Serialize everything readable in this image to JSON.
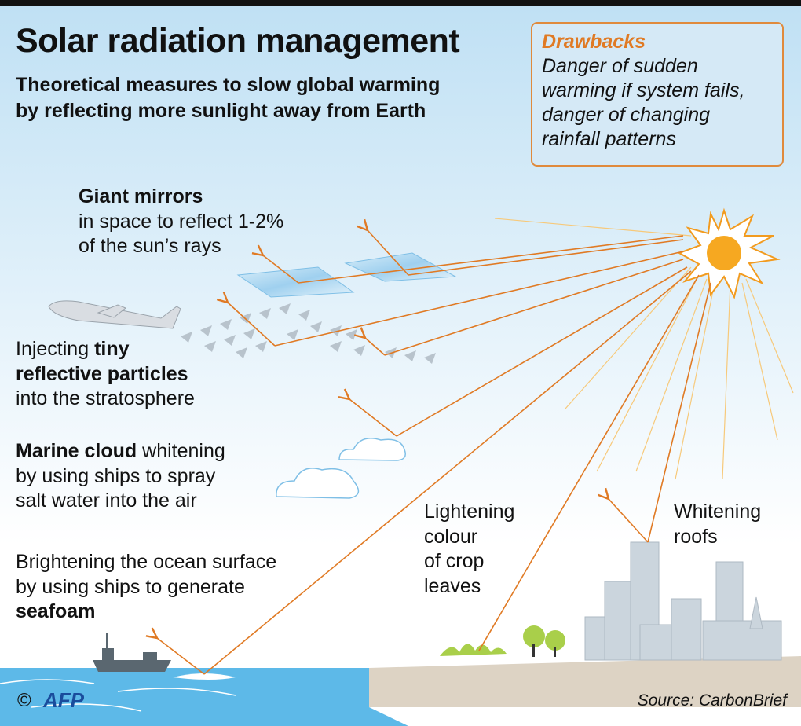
{
  "header": {
    "title": "Solar radiation management",
    "subtitle": [
      "Theoretical measures to slow global warming",
      "by reflecting more sunlight away from Earth"
    ]
  },
  "drawbacks": {
    "title": "Drawbacks",
    "lines": [
      "Danger of sudden",
      "warming if system fails,",
      "danger of changing",
      "rainfall patterns"
    ]
  },
  "labels": {
    "mirrors": [
      [
        {
          "text": "Giant mirrors",
          "bold": true
        }
      ],
      [
        {
          "text": "in space to reflect 1-2%"
        }
      ],
      [
        {
          "text": "of the sun’s rays"
        }
      ]
    ],
    "particles": [
      [
        {
          "text": "Injecting "
        },
        {
          "text": "tiny",
          "bold": true
        }
      ],
      [
        {
          "text": "reflective particles",
          "bold": true
        }
      ],
      [
        {
          "text": "into the stratosphere"
        }
      ]
    ],
    "clouds": [
      [
        {
          "text": "Marine cloud",
          "bold": true
        },
        {
          "text": " whitening"
        }
      ],
      [
        {
          "text": "by using ships to spray"
        }
      ],
      [
        {
          "text": "salt water into the air"
        }
      ]
    ],
    "ocean": [
      [
        {
          "text": "Brightening the ocean surface"
        }
      ],
      [
        {
          "text": "by using ships to generate"
        }
      ],
      [
        {
          "text": "seafoam",
          "bold": true
        }
      ]
    ],
    "crops": [
      [
        {
          "text": "Lightening"
        }
      ],
      [
        {
          "text": "colour"
        }
      ],
      [
        {
          "text": "of crop"
        }
      ],
      [
        {
          "text": "leaves"
        }
      ]
    ],
    "roofs": [
      [
        {
          "text": "Whitening"
        }
      ],
      [
        {
          "text": "roofs"
        }
      ]
    ]
  },
  "footer": {
    "copyright": "©",
    "agency": "AFP",
    "source": "Source: CarbonBrief"
  }
}
